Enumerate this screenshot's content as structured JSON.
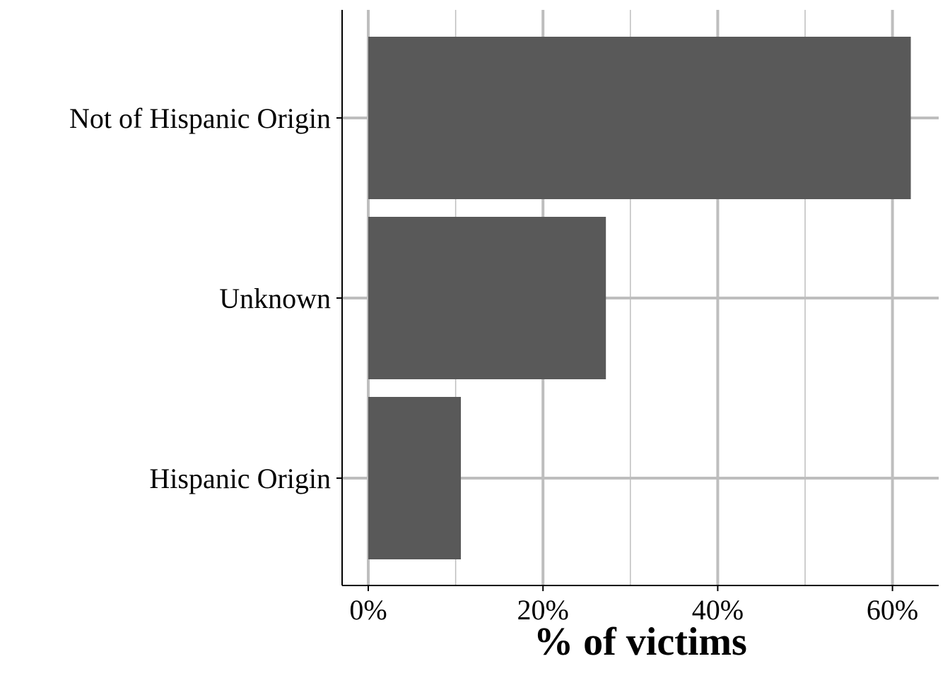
{
  "chart_data": {
    "type": "bar",
    "orientation": "horizontal",
    "categories": [
      "Not of Hispanic Origin",
      "Unknown",
      "Hispanic Origin"
    ],
    "values": [
      62.1,
      27.2,
      10.6
    ],
    "xlabel": "% of victims",
    "ylabel": "",
    "xlim": [
      -3,
      65
    ],
    "x_ticks": [
      "0%",
      "20%",
      "40%",
      "60%"
    ],
    "x_tick_values": [
      0,
      20,
      40,
      60
    ],
    "grid": true,
    "colors": {
      "bar": "#595959",
      "grid": "#bebebe",
      "axis": "#000000"
    }
  }
}
